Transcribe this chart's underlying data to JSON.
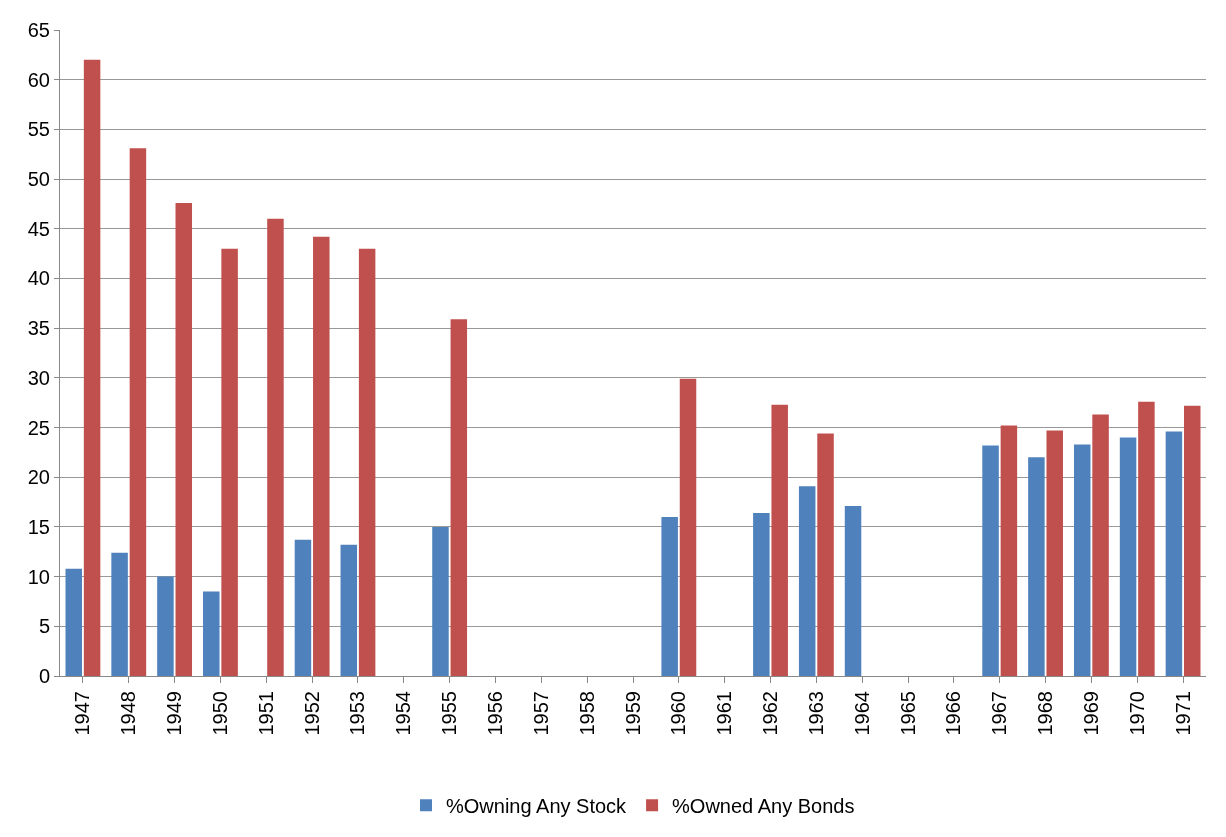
{
  "chart_data": {
    "type": "bar",
    "categories": [
      "1947",
      "1948",
      "1949",
      "1950",
      "1951",
      "1952",
      "1953",
      "1954",
      "1955",
      "1956",
      "1957",
      "1958",
      "1959",
      "1960",
      "1961",
      "1962",
      "1963",
      "1964",
      "1965",
      "1966",
      "1967",
      "1968",
      "1969",
      "1970",
      "1971"
    ],
    "series": [
      {
        "name": "%Owning Any Stock",
        "color": "#4f81bd",
        "values": [
          10.8,
          12.4,
          10.0,
          8.5,
          null,
          13.7,
          13.2,
          null,
          15.0,
          null,
          null,
          null,
          null,
          16.0,
          null,
          16.4,
          19.1,
          17.1,
          null,
          null,
          23.2,
          22.0,
          23.3,
          24.0,
          24.6
        ]
      },
      {
        "name": "%Owned Any Bonds",
        "color": "#c0504d",
        "values": [
          62.0,
          53.1,
          47.6,
          43.0,
          46.0,
          44.2,
          43.0,
          null,
          35.9,
          null,
          null,
          null,
          null,
          29.9,
          null,
          27.3,
          24.4,
          null,
          null,
          null,
          25.2,
          24.7,
          26.3,
          27.6,
          27.2
        ]
      }
    ],
    "ylim": [
      0,
      65
    ],
    "yticks": [
      0,
      5,
      10,
      15,
      20,
      25,
      30,
      35,
      40,
      45,
      50,
      55,
      60,
      65
    ],
    "grid": "y",
    "legend": "bottom"
  }
}
